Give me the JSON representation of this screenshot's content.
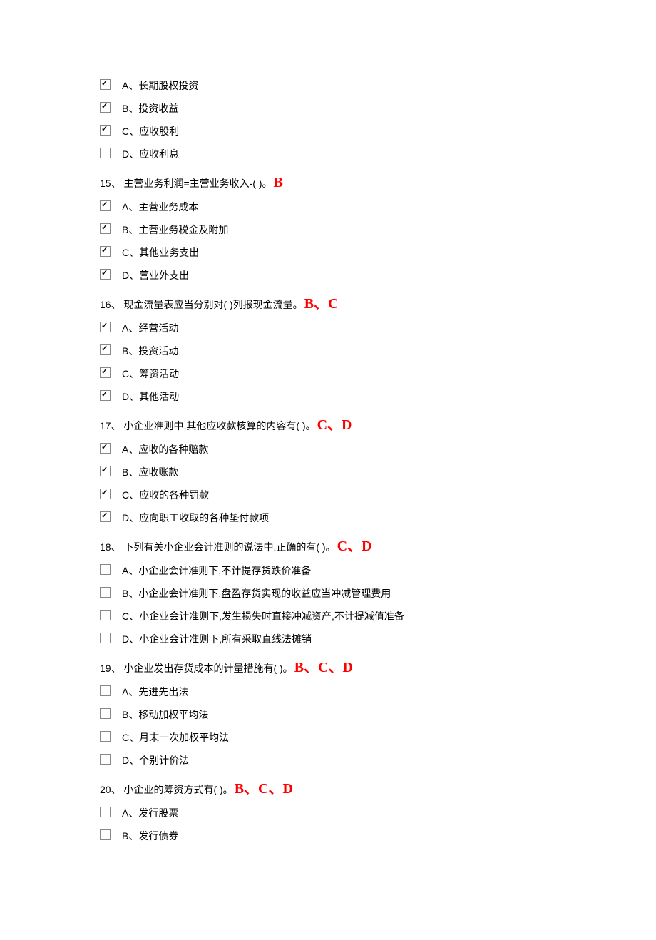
{
  "blocks": [
    {
      "question": null,
      "answer": null,
      "options": [
        {
          "checked": true,
          "label": "A、长期股权投资"
        },
        {
          "checked": true,
          "label": "B、投资收益"
        },
        {
          "checked": true,
          "label": "C、应收股利"
        },
        {
          "checked": false,
          "label": "D、应收利息"
        }
      ]
    },
    {
      "question": "15、 主营业务利润=主营业务收入-( )。",
      "answer": "B",
      "options": [
        {
          "checked": true,
          "label": "A、主营业务成本"
        },
        {
          "checked": true,
          "label": "B、主营业务税金及附加"
        },
        {
          "checked": true,
          "label": "C、其他业务支出"
        },
        {
          "checked": true,
          "label": "D、营业外支出"
        }
      ]
    },
    {
      "question": "16、 现金流量表应当分别对( )列报现金流量。",
      "answer": "B、C",
      "options": [
        {
          "checked": true,
          "label": "A、经营活动"
        },
        {
          "checked": true,
          "label": "B、投资活动"
        },
        {
          "checked": true,
          "label": "C、筹资活动"
        },
        {
          "checked": true,
          "label": "D、其他活动"
        }
      ]
    },
    {
      "question": "17、 小企业准则中,其他应收款核算的内容有( )。",
      "answer": "C、D",
      "options": [
        {
          "checked": true,
          "label": "A、应收的各种赔款"
        },
        {
          "checked": true,
          "label": "B、应收账款"
        },
        {
          "checked": true,
          "label": "C、应收的各种罚款"
        },
        {
          "checked": true,
          "label": "D、应向职工收取的各种垫付款项"
        }
      ]
    },
    {
      "question": "18、 下列有关小企业会计准则的说法中,正确的有( )。",
      "answer": "C、D",
      "options": [
        {
          "checked": false,
          "label": "A、小企业会计准则下,不计提存货跌价准备"
        },
        {
          "checked": false,
          "label": "B、小企业会计准则下,盘盈存货实现的收益应当冲减管理费用"
        },
        {
          "checked": false,
          "label": "C、小企业会计准则下,发生损失时直接冲减资产,不计提减值准备"
        },
        {
          "checked": false,
          "label": "D、小企业会计准则下,所有采取直线法摊销"
        }
      ]
    },
    {
      "question": "19、 小企业发出存货成本的计量措施有( )。",
      "answer": "B、C、D",
      "options": [
        {
          "checked": false,
          "label": "A、先进先出法"
        },
        {
          "checked": false,
          "label": "B、移动加权平均法"
        },
        {
          "checked": false,
          "label": "C、月末一次加权平均法"
        },
        {
          "checked": false,
          "label": "D、个别计价法"
        }
      ]
    },
    {
      "question": "20、 小企业的筹资方式有( )。",
      "answer": "B、C、D",
      "options": [
        {
          "checked": false,
          "label": "A、发行股票"
        },
        {
          "checked": false,
          "label": "B、发行债券"
        }
      ]
    }
  ]
}
